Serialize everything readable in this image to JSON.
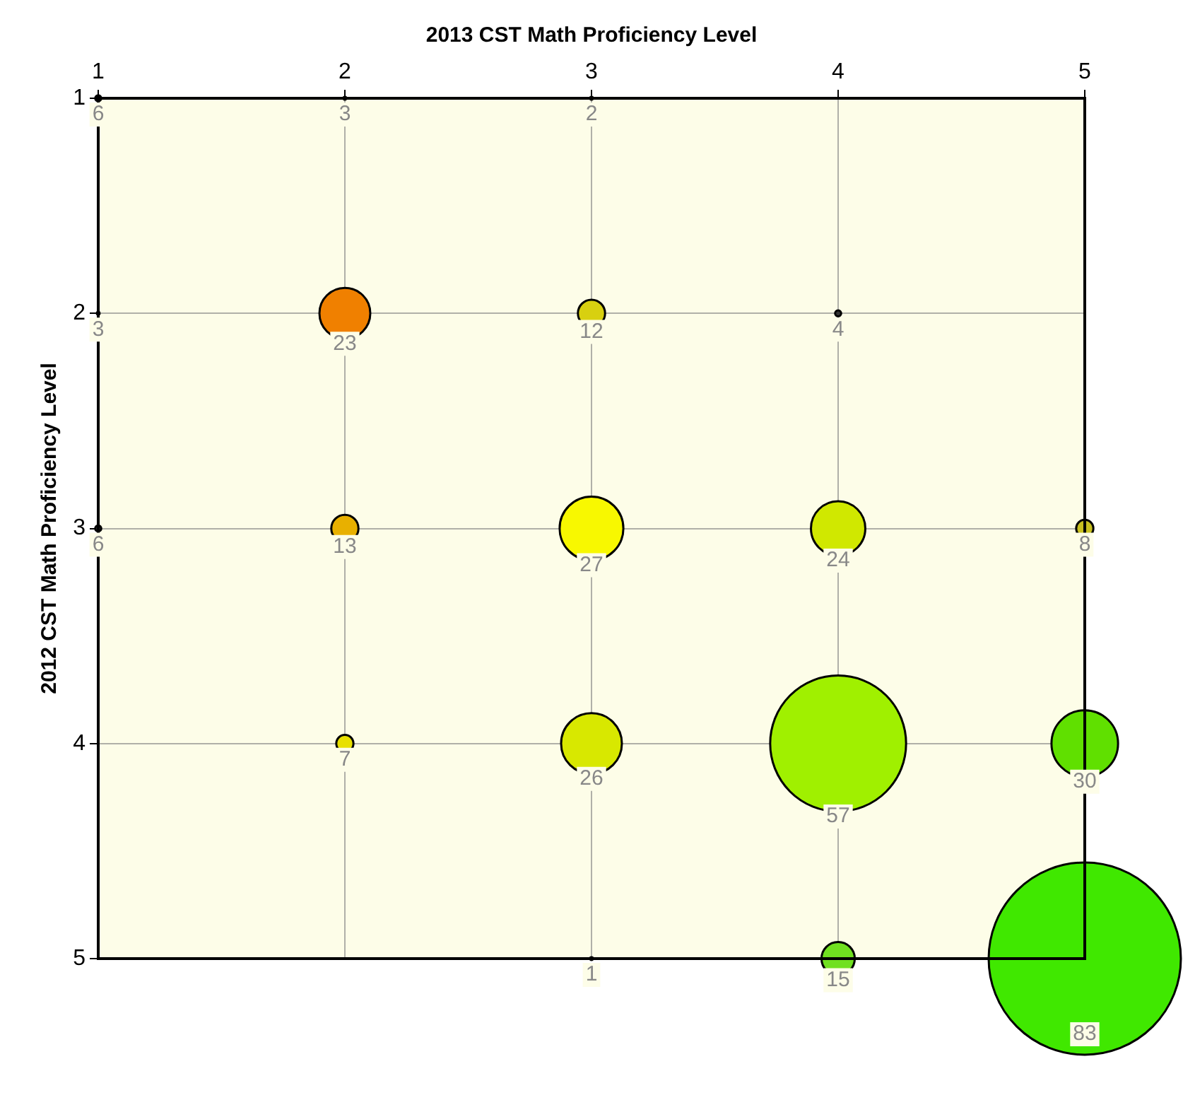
{
  "chart_data": {
    "type": "bubble",
    "xlabel": "2013 CST Math Proficiency Level",
    "ylabel": "2012 CST Math Proficiency Level",
    "x": [
      1,
      2,
      3,
      1,
      2,
      3,
      4,
      1,
      2,
      3,
      4,
      5,
      2,
      3,
      4,
      5,
      3,
      4,
      5
    ],
    "values": [
      1,
      1,
      1,
      2,
      2,
      2,
      2,
      3,
      3,
      3,
      3,
      3,
      4,
      4,
      4,
      4,
      5,
      5,
      5
    ],
    "sizes": [
      0.001,
      0.0002,
      0.0002,
      0.0002,
      0.07,
      0.02,
      0.001,
      0.001,
      0.02,
      0.11,
      0.08,
      0.008,
      0.008,
      0.1,
      0.5,
      0.12,
      0.0002,
      0.03,
      1
    ],
    "annotations": [
      {
        "text": "6",
        "x": 1,
        "y": 1
      },
      {
        "text": "3",
        "x": 2,
        "y": 1
      },
      {
        "text": "2",
        "x": 3,
        "y": 1
      },
      {
        "text": "3",
        "x": 1,
        "y": 2
      },
      {
        "text": "23",
        "x": 2,
        "y": 2
      },
      {
        "text": "12",
        "x": 3,
        "y": 2
      },
      {
        "text": "4",
        "x": 4,
        "y": 2
      },
      {
        "text": "6",
        "x": 1,
        "y": 3
      },
      {
        "text": "13",
        "x": 2,
        "y": 3
      },
      {
        "text": "27",
        "x": 3,
        "y": 3
      },
      {
        "text": "24",
        "x": 4,
        "y": 3
      },
      {
        "text": "8",
        "x": 5,
        "y": 3
      },
      {
        "text": "7",
        "x": 2,
        "y": 4
      },
      {
        "text": "26",
        "x": 3,
        "y": 4
      },
      {
        "text": "57",
        "x": 4,
        "y": 4
      },
      {
        "text": "30",
        "x": 5,
        "y": 4
      },
      {
        "text": "1",
        "x": 3,
        "y": 5
      },
      {
        "text": "15",
        "x": 4,
        "y": 5
      },
      {
        "text": "83",
        "x": 5,
        "y": 5
      }
    ],
    "colors": [
      "#000000",
      "#000000",
      "#000000",
      "#000000",
      "#f08000",
      "#d8d010",
      "#333333",
      "#333333",
      "#e8b000",
      "#f8f800",
      "#d0e800",
      "#c8c020",
      "#e8e000",
      "#d8e800",
      "#a0f000",
      "#60e000",
      "#000000",
      "#70e020",
      "#40e800"
    ],
    "xlim": [
      1,
      5
    ],
    "xticks": [
      1,
      2,
      3,
      4,
      5
    ],
    "ylim": [
      5,
      1
    ],
    "yticks": [
      1,
      2,
      3,
      4,
      5
    ],
    "grid": true,
    "legend": false
  }
}
